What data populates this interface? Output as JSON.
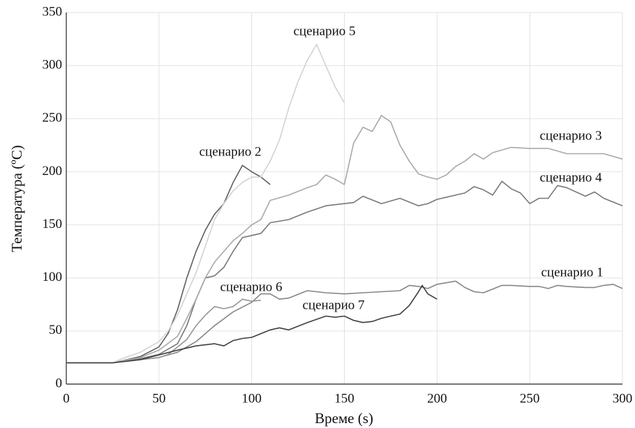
{
  "chart_data": {
    "type": "line",
    "xlabel": "Време (s)",
    "ylabel": "Температура (ºC)",
    "xlim": [
      0,
      300
    ],
    "xticks": [
      0,
      50,
      100,
      150,
      200,
      250,
      300
    ],
    "ylim": [
      0,
      350
    ],
    "yticks": [
      0,
      50,
      100,
      150,
      200,
      250,
      300,
      350
    ],
    "grid": true,
    "series": [
      {
        "name": "сценарио 1",
        "color": "#858585",
        "x": [
          0,
          5,
          10,
          15,
          20,
          25,
          30,
          40,
          50,
          60,
          70,
          80,
          90,
          100,
          105,
          110,
          115,
          120,
          130,
          140,
          150,
          160,
          170,
          180,
          185,
          190,
          195,
          200,
          210,
          215,
          220,
          225,
          235,
          240,
          250,
          255,
          260,
          265,
          270,
          280,
          285,
          290,
          295,
          300
        ],
        "values": [
          20,
          20,
          20,
          20,
          20,
          20,
          21,
          23,
          25,
          30,
          40,
          55,
          68,
          77,
          85,
          85,
          80,
          81,
          88,
          86,
          85,
          86,
          87,
          88,
          93,
          92,
          90,
          94,
          97,
          91,
          87,
          86,
          93,
          93,
          92,
          92,
          90,
          93,
          92,
          91,
          91,
          93,
          94,
          90
        ]
      },
      {
        "name": "сценарио 2",
        "color": "#5e5e5e",
        "x": [
          0,
          25,
          30,
          40,
          50,
          55,
          60,
          65,
          70,
          75,
          80,
          85,
          90,
          95,
          100,
          105,
          110
        ],
        "values": [
          20,
          20,
          22,
          26,
          35,
          48,
          70,
          100,
          125,
          145,
          160,
          170,
          190,
          206,
          200,
          195,
          188
        ]
      },
      {
        "name": "сценарио 3",
        "color": "#777777",
        "x": [
          0,
          25,
          40,
          50,
          60,
          65,
          70,
          75,
          80,
          85,
          90,
          95,
          100,
          105,
          110,
          120,
          130,
          140,
          150,
          155,
          160,
          170,
          180,
          190,
          195,
          200,
          210,
          215,
          220,
          225,
          230,
          235,
          240,
          245,
          250,
          255,
          260,
          265,
          270,
          280,
          285,
          290,
          300
        ],
        "values": [
          20,
          20,
          24,
          28,
          38,
          55,
          80,
          100,
          102,
          110,
          125,
          138,
          140,
          142,
          152,
          155,
          162,
          168,
          170,
          171,
          177,
          170,
          175,
          168,
          170,
          174,
          178,
          180,
          186,
          183,
          178,
          191,
          184,
          180,
          170,
          175,
          175,
          187,
          185,
          177,
          181,
          175,
          168
        ]
      },
      {
        "name": "сценарио 4",
        "color": "#a8a8a8",
        "x": [
          0,
          25,
          30,
          40,
          50,
          60,
          65,
          70,
          75,
          80,
          85,
          90,
          95,
          100,
          105,
          110,
          120,
          130,
          135,
          140,
          145,
          150,
          155,
          160,
          165,
          170,
          175,
          180,
          185,
          190,
          195,
          200,
          205,
          210,
          215,
          220,
          225,
          230,
          240,
          250,
          260,
          270,
          280,
          290,
          300
        ],
        "values": [
          20,
          20,
          22,
          25,
          32,
          45,
          62,
          80,
          100,
          115,
          125,
          135,
          142,
          150,
          155,
          173,
          178,
          185,
          188,
          197,
          193,
          188,
          227,
          242,
          238,
          253,
          247,
          225,
          210,
          198,
          195,
          193,
          197,
          205,
          210,
          217,
          212,
          218,
          223,
          222,
          222,
          217,
          217,
          217,
          212
        ]
      },
      {
        "name": "сценарио 5",
        "color": "#d2d2d2",
        "x": [
          0,
          25,
          30,
          40,
          50,
          55,
          60,
          65,
          70,
          75,
          80,
          85,
          90,
          95,
          100,
          105,
          110,
          115,
          120,
          125,
          130,
          135,
          140,
          145,
          150
        ],
        "values": [
          20,
          20,
          24,
          30,
          40,
          50,
          65,
          85,
          105,
          130,
          155,
          170,
          182,
          190,
          195,
          195,
          210,
          230,
          260,
          285,
          305,
          320,
          300,
          280,
          265
        ]
      },
      {
        "name": "сценарио 6",
        "color": "#959595",
        "x": [
          0,
          25,
          30,
          40,
          50,
          55,
          60,
          65,
          70,
          75,
          80,
          85,
          90,
          95,
          100,
          105
        ],
        "values": [
          20,
          20,
          21,
          23,
          25,
          28,
          35,
          42,
          55,
          65,
          73,
          71,
          73,
          80,
          78,
          79
        ]
      },
      {
        "name": "сценарио 7",
        "color": "#3e3e3e",
        "x": [
          0,
          25,
          40,
          60,
          70,
          80,
          85,
          90,
          95,
          100,
          110,
          115,
          120,
          130,
          140,
          145,
          150,
          155,
          160,
          165,
          170,
          175,
          180,
          185,
          190,
          192,
          195,
          200
        ],
        "values": [
          20,
          20,
          23,
          32,
          36,
          38,
          36,
          41,
          43,
          44,
          51,
          53,
          51,
          58,
          64,
          63,
          64,
          60,
          58,
          59,
          62,
          64,
          66,
          74,
          87,
          93,
          85,
          80
        ]
      }
    ]
  }
}
